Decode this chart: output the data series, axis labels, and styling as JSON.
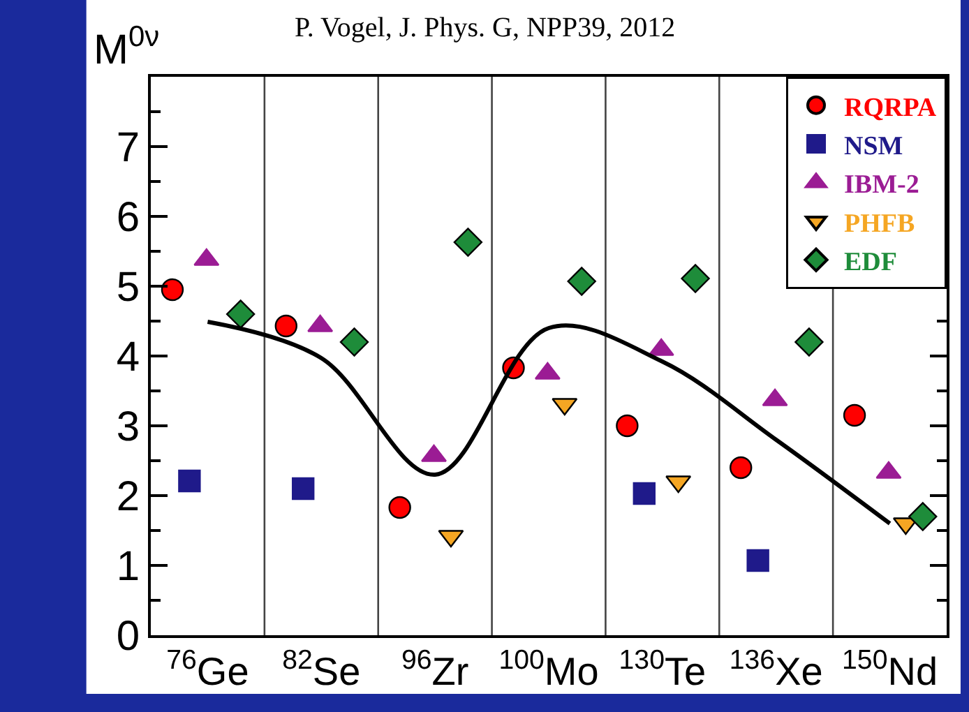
{
  "chart_data": {
    "type": "scatter",
    "title": "P. Vogel, J. Phys. G, NPP39, 2012",
    "ylabel": "M$^{0ν}$",
    "categories": [
      "$^{76}$Ge",
      "$^{82}$Se",
      "$^{96}$Zr",
      "$^{100}$Mo",
      "$^{130}$Te",
      "$^{136}$Xe",
      "$^{150}$Nd"
    ],
    "ylim": [
      0,
      8
    ],
    "yticks": [
      0,
      1,
      2,
      3,
      4,
      5,
      6,
      7
    ],
    "grid": "x",
    "legend": "top right",
    "series": [
      {
        "name": "RQRPA",
        "color": "#ff0000",
        "marker": "circle",
        "values": [
          4.95,
          4.43,
          1.83,
          3.83,
          3.0,
          2.4,
          3.15
        ]
      },
      {
        "name": "NSM",
        "color": "#1f1a8a",
        "marker": "square",
        "values": [
          2.21,
          2.1,
          null,
          null,
          2.03,
          1.07,
          null
        ]
      },
      {
        "name": "IBM-2",
        "color": "#9b1c94",
        "marker": "triangle",
        "values": [
          5.38,
          4.43,
          2.57,
          3.75,
          4.09,
          3.37,
          2.33
        ]
      },
      {
        "name": "PHFB",
        "color": "#f5a623",
        "marker": "triangle-down",
        "values": [
          null,
          null,
          1.42,
          3.31,
          2.2,
          null,
          1.6
        ]
      },
      {
        "name": "EDF",
        "color": "#1e8c3a",
        "marker": "diamond",
        "values": [
          4.6,
          4.2,
          5.63,
          5.07,
          5.11,
          4.2,
          1.7
        ]
      },
      {
        "type": "line",
        "color": "#000000",
        "values": [
          4.49,
          3.97,
          2.3,
          4.4,
          3.92,
          2.8,
          1.6
        ]
      }
    ]
  }
}
